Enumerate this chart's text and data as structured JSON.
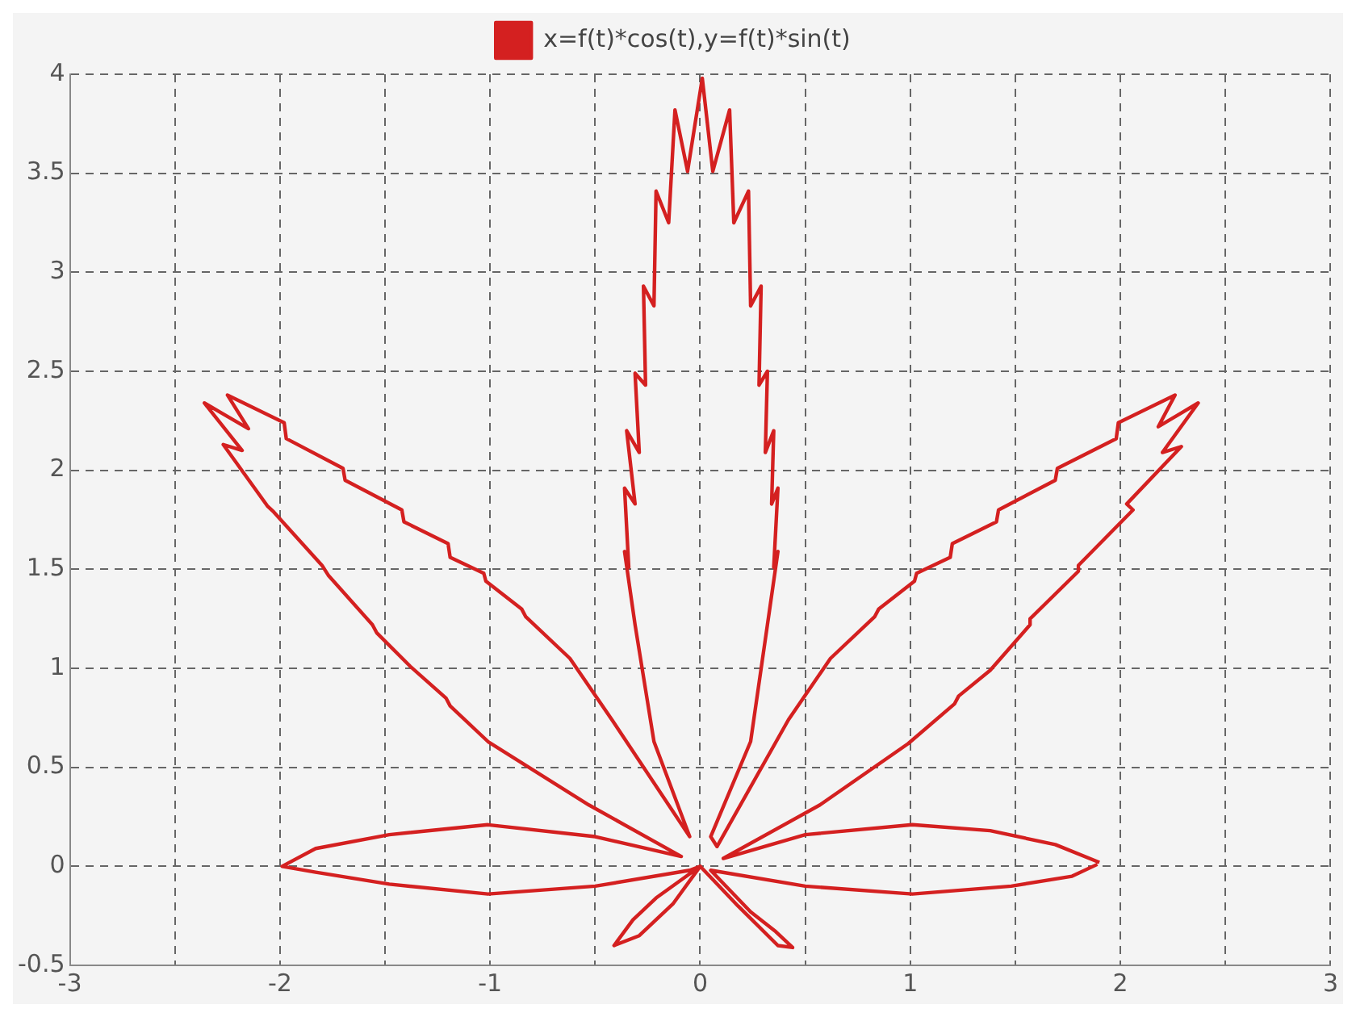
{
  "chart_data": {
    "type": "line",
    "x": [
      1.9,
      1.69,
      1.38,
      1.01,
      0.5,
      0.11,
      0.57,
      0.99,
      1.21,
      1.23,
      1.38,
      1.57,
      1.57,
      1.8,
      1.8,
      2.06,
      2.03,
      2.29,
      2.2,
      2.37,
      2.18,
      2.26,
      1.99,
      1.98,
      1.7,
      1.69,
      1.42,
      1.41,
      1.2,
      1.19,
      1.03,
      1.02,
      0.85,
      0.83,
      0.62,
      0.42,
      0.08,
      0.05,
      0.24,
      0.32,
      0.37,
      0.35,
      0.37,
      0.34,
      0.35,
      0.31,
      0.32,
      0.28,
      0.29,
      0.24,
      0.23,
      0.16,
      0.14,
      0.06,
      0.01,
      -0.06,
      -0.12,
      -0.15,
      -0.21,
      -0.22,
      -0.27,
      -0.26,
      -0.31,
      -0.29,
      -0.35,
      -0.31,
      -0.36,
      -0.34,
      -0.36,
      -0.31,
      -0.22,
      -0.05,
      -0.42,
      -0.62,
      -0.83,
      -0.85,
      -1.02,
      -1.03,
      -1.19,
      -1.2,
      -1.41,
      -1.42,
      -1.69,
      -1.7,
      -1.97,
      -1.98,
      -2.25,
      -2.15,
      -2.36,
      -2.18,
      -2.27,
      -2.06,
      -2.03,
      -1.8,
      -1.77,
      -1.56,
      -1.54,
      -1.38,
      -1.21,
      -1.19,
      -1.01,
      -0.53,
      -0.09,
      -0.5,
      -1.01,
      -1.48,
      -1.83,
      -1.99,
      -1.83,
      -1.48,
      -1.01,
      -0.5,
      -0.05,
      0.0,
      -0.21,
      -0.32,
      -0.41,
      -0.29,
      -0.13,
      0.0,
      0.18,
      0.37,
      0.44,
      0.36,
      0.24,
      0.05,
      0.5,
      1.01,
      1.48,
      1.77,
      1.89
    ],
    "series": [
      {
        "name": "x=f(t)*cos(t),y=f(t)*sin(t)",
        "color": "#d42020",
        "values": [
          0.02,
          0.11,
          0.18,
          0.21,
          0.16,
          0.04,
          0.31,
          0.62,
          0.82,
          0.86,
          0.99,
          1.22,
          1.25,
          1.49,
          1.52,
          1.8,
          1.83,
          2.12,
          2.09,
          2.34,
          2.22,
          2.38,
          2.24,
          2.16,
          2.01,
          1.95,
          1.8,
          1.74,
          1.63,
          1.56,
          1.48,
          1.44,
          1.3,
          1.26,
          1.05,
          0.74,
          0.1,
          0.15,
          0.63,
          1.22,
          1.59,
          1.51,
          1.91,
          1.83,
          2.2,
          2.09,
          2.5,
          2.43,
          2.93,
          2.83,
          3.41,
          3.25,
          3.82,
          3.51,
          3.98,
          3.51,
          3.82,
          3.25,
          3.41,
          2.83,
          2.93,
          2.43,
          2.49,
          2.09,
          2.2,
          1.83,
          1.91,
          1.51,
          1.59,
          1.22,
          0.63,
          0.15,
          0.74,
          1.05,
          1.26,
          1.3,
          1.44,
          1.48,
          1.56,
          1.63,
          1.74,
          1.8,
          1.95,
          2.01,
          2.16,
          2.24,
          2.38,
          2.21,
          2.34,
          2.1,
          2.13,
          1.82,
          1.79,
          1.52,
          1.47,
          1.22,
          1.18,
          1.01,
          0.85,
          0.81,
          0.63,
          0.31,
          0.05,
          0.15,
          0.21,
          0.16,
          0.09,
          0.0,
          -0.03,
          -0.09,
          -0.14,
          -0.1,
          -0.02,
          0.0,
          -0.16,
          -0.27,
          -0.4,
          -0.35,
          -0.19,
          0.0,
          -0.2,
          -0.4,
          -0.41,
          -0.33,
          -0.23,
          -0.02,
          -0.1,
          -0.14,
          -0.1,
          -0.05,
          0.01
        ]
      }
    ],
    "xlim": [
      -3,
      3
    ],
    "xticks": [
      -3,
      {
        "value": -2.5,
        "label": null
      },
      -2,
      {
        "value": -1.5,
        "label": null
      },
      -1,
      {
        "value": -0.5,
        "label": null
      },
      0,
      {
        "value": 0.5,
        "label": null
      },
      1,
      {
        "value": 1.5,
        "label": null
      },
      2,
      {
        "value": 2.5,
        "label": null
      },
      3
    ],
    "ylim": [
      -0.5,
      4
    ],
    "yticks": [
      -0.5,
      0,
      0.5,
      1,
      1.5,
      2,
      2.5,
      3,
      3.5,
      4
    ],
    "grid": true,
    "legend": "top",
    "marker": "none",
    "line_style": "solid"
  }
}
